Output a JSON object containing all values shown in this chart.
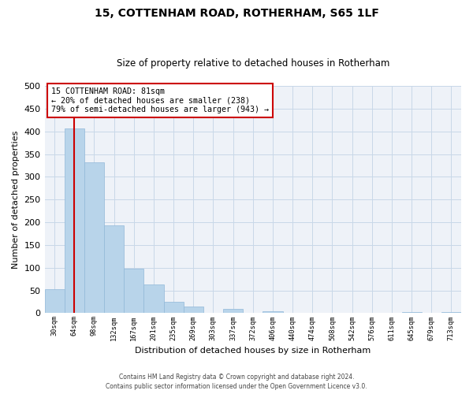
{
  "title": "15, COTTENHAM ROAD, ROTHERHAM, S65 1LF",
  "subtitle": "Size of property relative to detached houses in Rotherham",
  "xlabel": "Distribution of detached houses by size in Rotherham",
  "ylabel": "Number of detached properties",
  "bar_values": [
    53,
    406,
    332,
    193,
    97,
    63,
    25,
    14,
    0,
    10,
    0,
    5,
    0,
    0,
    0,
    0,
    0,
    0,
    2,
    0,
    2
  ],
  "bin_labels": [
    "30sqm",
    "64sqm",
    "98sqm",
    "132sqm",
    "167sqm",
    "201sqm",
    "235sqm",
    "269sqm",
    "303sqm",
    "337sqm",
    "372sqm",
    "406sqm",
    "440sqm",
    "474sqm",
    "508sqm",
    "542sqm",
    "576sqm",
    "611sqm",
    "645sqm",
    "679sqm",
    "713sqm"
  ],
  "bar_color": "#b8d4ea",
  "bar_edge_color": "#90b8d8",
  "grid_color": "#c8d8e8",
  "annotation_box_color": "#cc0000",
  "annotation_line_color": "#cc0000",
  "annotation_text_line1": "15 COTTENHAM ROAD: 81sqm",
  "annotation_text_line2": "← 20% of detached houses are smaller (238)",
  "annotation_text_line3": "79% of semi-detached houses are larger (943) →",
  "ylim": [
    0,
    500
  ],
  "yticks": [
    0,
    50,
    100,
    150,
    200,
    250,
    300,
    350,
    400,
    450,
    500
  ],
  "footer_line1": "Contains HM Land Registry data © Crown copyright and database right 2024.",
  "footer_line2": "Contains public sector information licensed under the Open Government Licence v3.0.",
  "background_color": "#ffffff",
  "plot_bg_color": "#eef2f8"
}
